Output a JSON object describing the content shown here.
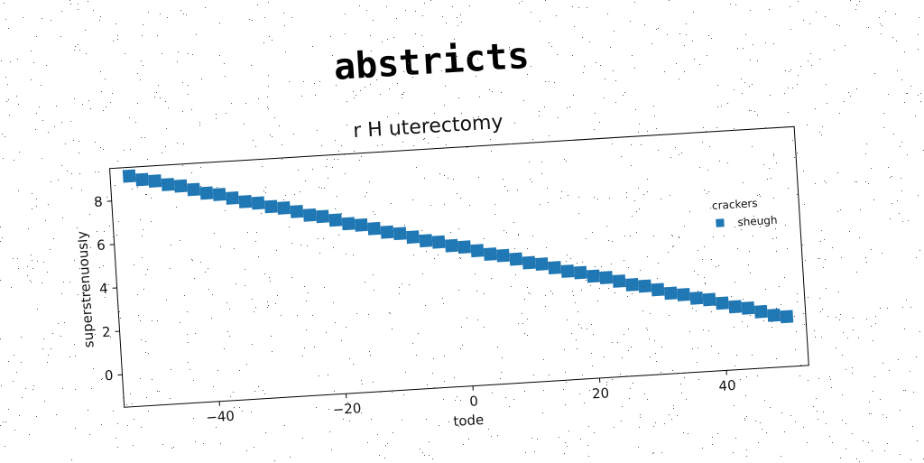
{
  "title": "abstricts",
  "chart_data": {
    "type": "scatter",
    "title": "r H uterectomy",
    "xlabel": "tode",
    "ylabel": "superstrenuously",
    "xlim": [
      -55,
      53
    ],
    "ylim": [
      -1.5,
      9.5
    ],
    "xticks": [
      -40,
      -20,
      0,
      20,
      40
    ],
    "xtick_labels": [
      "−40",
      "−20",
      "0",
      "20",
      "40"
    ],
    "yticks": [
      0,
      2,
      4,
      6,
      8
    ],
    "yticks_labels": [
      "0",
      "2",
      "4",
      "6",
      "8"
    ],
    "grid": false,
    "legend": {
      "title": "crackers",
      "placement": "right",
      "entries": [
        "sheugh"
      ]
    },
    "series": [
      {
        "name": "sheugh",
        "color": "#1f77b4",
        "marker": "square",
        "x": [
          -52,
          -50,
          -48,
          -46,
          -44,
          -42,
          -40,
          -38,
          -36,
          -34,
          -32,
          -30,
          -28,
          -26,
          -24,
          -22,
          -20,
          -18,
          -16,
          -14,
          -12,
          -10,
          -8,
          -6,
          -4,
          -2,
          0,
          2,
          4,
          6,
          8,
          10,
          12,
          14,
          16,
          18,
          20,
          22,
          24,
          26,
          28,
          30,
          32,
          34,
          36,
          38,
          40,
          42,
          44,
          46,
          48,
          50
        ],
        "y": [
          9.1,
          8.9,
          8.8,
          8.6,
          8.5,
          8.3,
          8.1,
          8.0,
          7.8,
          7.6,
          7.5,
          7.3,
          7.2,
          7.0,
          6.8,
          6.7,
          6.5,
          6.3,
          6.2,
          6.0,
          5.8,
          5.7,
          5.5,
          5.3,
          5.2,
          5.0,
          4.9,
          4.7,
          4.5,
          4.4,
          4.2,
          4.0,
          3.9,
          3.7,
          3.5,
          3.4,
          3.2,
          3.1,
          2.9,
          2.7,
          2.6,
          2.4,
          2.2,
          2.1,
          1.9,
          1.8,
          1.6,
          1.4,
          1.3,
          1.1,
          0.9,
          0.8
        ]
      }
    ]
  }
}
